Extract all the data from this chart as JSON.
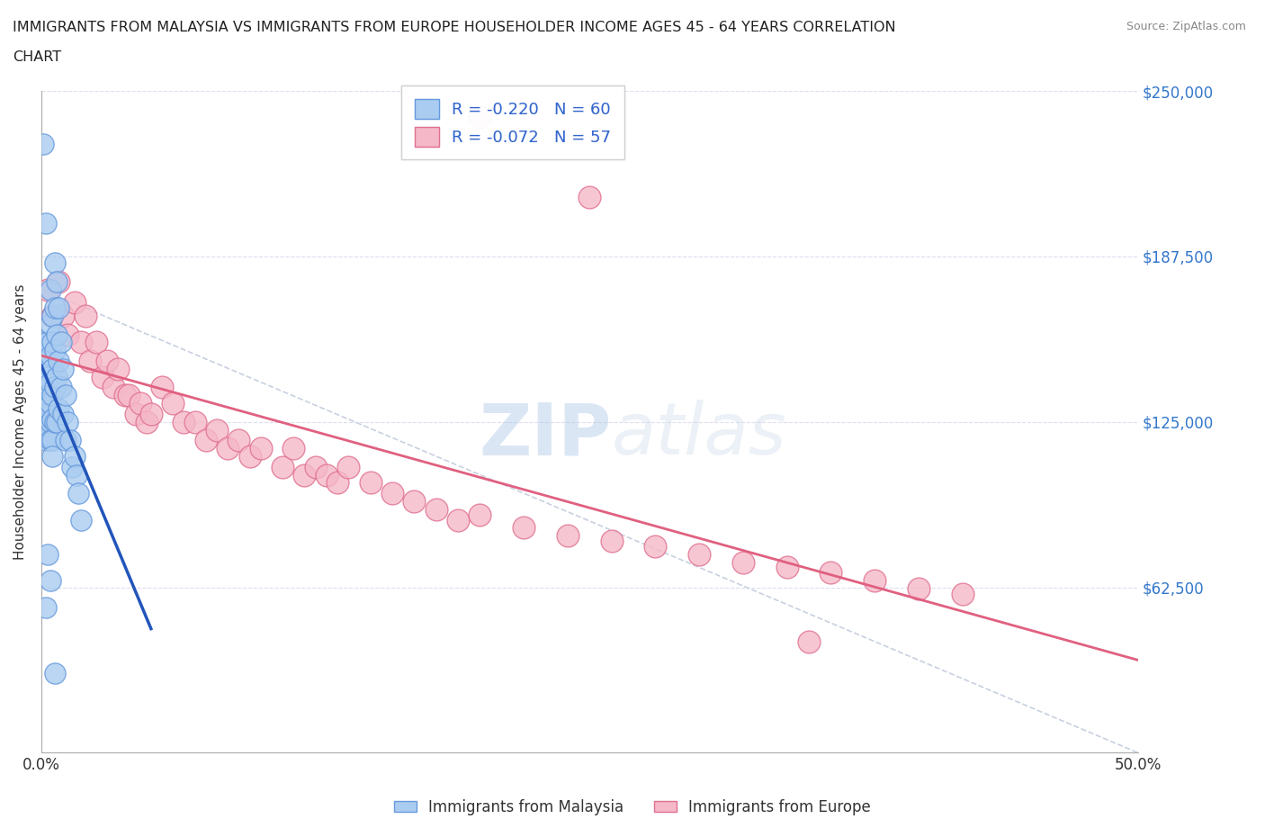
{
  "title_line1": "IMMIGRANTS FROM MALAYSIA VS IMMIGRANTS FROM EUROPE HOUSEHOLDER INCOME AGES 45 - 64 YEARS CORRELATION",
  "title_line2": "CHART",
  "source": "Source: ZipAtlas.com",
  "ylabel": "Householder Income Ages 45 - 64 years",
  "xlim": [
    0.0,
    0.5
  ],
  "ylim": [
    0,
    250000
  ],
  "yticks": [
    0,
    62500,
    125000,
    187500,
    250000
  ],
  "ytick_labels": [
    "",
    "$62,500",
    "$125,000",
    "$187,500",
    "$250,000"
  ],
  "xticks": [
    0.0,
    0.05,
    0.1,
    0.15,
    0.2,
    0.25,
    0.3,
    0.35,
    0.4,
    0.45,
    0.5
  ],
  "malaysia_R": -0.22,
  "malaysia_N": 60,
  "europe_R": -0.072,
  "europe_N": 57,
  "malaysia_color": "#aaccf0",
  "malaysia_edge_color": "#6699dd",
  "europe_color": "#f5b8c8",
  "europe_edge_color": "#e07090",
  "malaysia_line_color": "#2255bb",
  "europe_line_color": "#e06080",
  "legend_label_malaysia": "Immigrants from Malaysia",
  "legend_label_europe": "Immigrants from Europe",
  "background_color": "#ffffff",
  "malaysia_x": [
    0.001,
    0.001,
    0.001,
    0.001,
    0.002,
    0.002,
    0.002,
    0.002,
    0.002,
    0.003,
    0.003,
    0.003,
    0.003,
    0.003,
    0.003,
    0.004,
    0.004,
    0.004,
    0.004,
    0.004,
    0.004,
    0.004,
    0.005,
    0.005,
    0.005,
    0.005,
    0.005,
    0.005,
    0.005,
    0.006,
    0.006,
    0.006,
    0.006,
    0.006,
    0.007,
    0.007,
    0.007,
    0.007,
    0.008,
    0.008,
    0.008,
    0.009,
    0.009,
    0.01,
    0.01,
    0.011,
    0.011,
    0.012,
    0.013,
    0.014,
    0.015,
    0.016,
    0.017,
    0.018,
    0.001,
    0.002,
    0.003,
    0.004,
    0.002,
    0.006
  ],
  "malaysia_y": [
    155000,
    145000,
    138000,
    128000,
    148000,
    140000,
    132000,
    125000,
    118000,
    155000,
    148000,
    142000,
    135000,
    128000,
    120000,
    175000,
    162000,
    150000,
    140000,
    132000,
    125000,
    118000,
    165000,
    155000,
    145000,
    135000,
    126000,
    118000,
    112000,
    185000,
    168000,
    152000,
    138000,
    125000,
    178000,
    158000,
    142000,
    125000,
    168000,
    148000,
    130000,
    155000,
    138000,
    145000,
    128000,
    135000,
    118000,
    125000,
    118000,
    108000,
    112000,
    105000,
    98000,
    88000,
    230000,
    200000,
    75000,
    65000,
    55000,
    30000
  ],
  "europe_x": [
    0.003,
    0.005,
    0.008,
    0.01,
    0.012,
    0.015,
    0.018,
    0.02,
    0.022,
    0.025,
    0.028,
    0.03,
    0.033,
    0.035,
    0.038,
    0.04,
    0.043,
    0.045,
    0.048,
    0.05,
    0.055,
    0.06,
    0.065,
    0.07,
    0.075,
    0.08,
    0.085,
    0.09,
    0.095,
    0.1,
    0.11,
    0.115,
    0.12,
    0.125,
    0.13,
    0.135,
    0.14,
    0.15,
    0.16,
    0.17,
    0.18,
    0.19,
    0.2,
    0.22,
    0.24,
    0.26,
    0.28,
    0.3,
    0.32,
    0.34,
    0.36,
    0.38,
    0.4,
    0.42,
    0.2,
    0.25,
    0.35
  ],
  "europe_y": [
    175000,
    165000,
    178000,
    165000,
    158000,
    170000,
    155000,
    165000,
    148000,
    155000,
    142000,
    148000,
    138000,
    145000,
    135000,
    135000,
    128000,
    132000,
    125000,
    128000,
    138000,
    132000,
    125000,
    125000,
    118000,
    122000,
    115000,
    118000,
    112000,
    115000,
    108000,
    115000,
    105000,
    108000,
    105000,
    102000,
    108000,
    102000,
    98000,
    95000,
    92000,
    88000,
    90000,
    85000,
    82000,
    80000,
    78000,
    75000,
    72000,
    70000,
    68000,
    65000,
    62000,
    60000,
    240000,
    210000,
    42000
  ]
}
